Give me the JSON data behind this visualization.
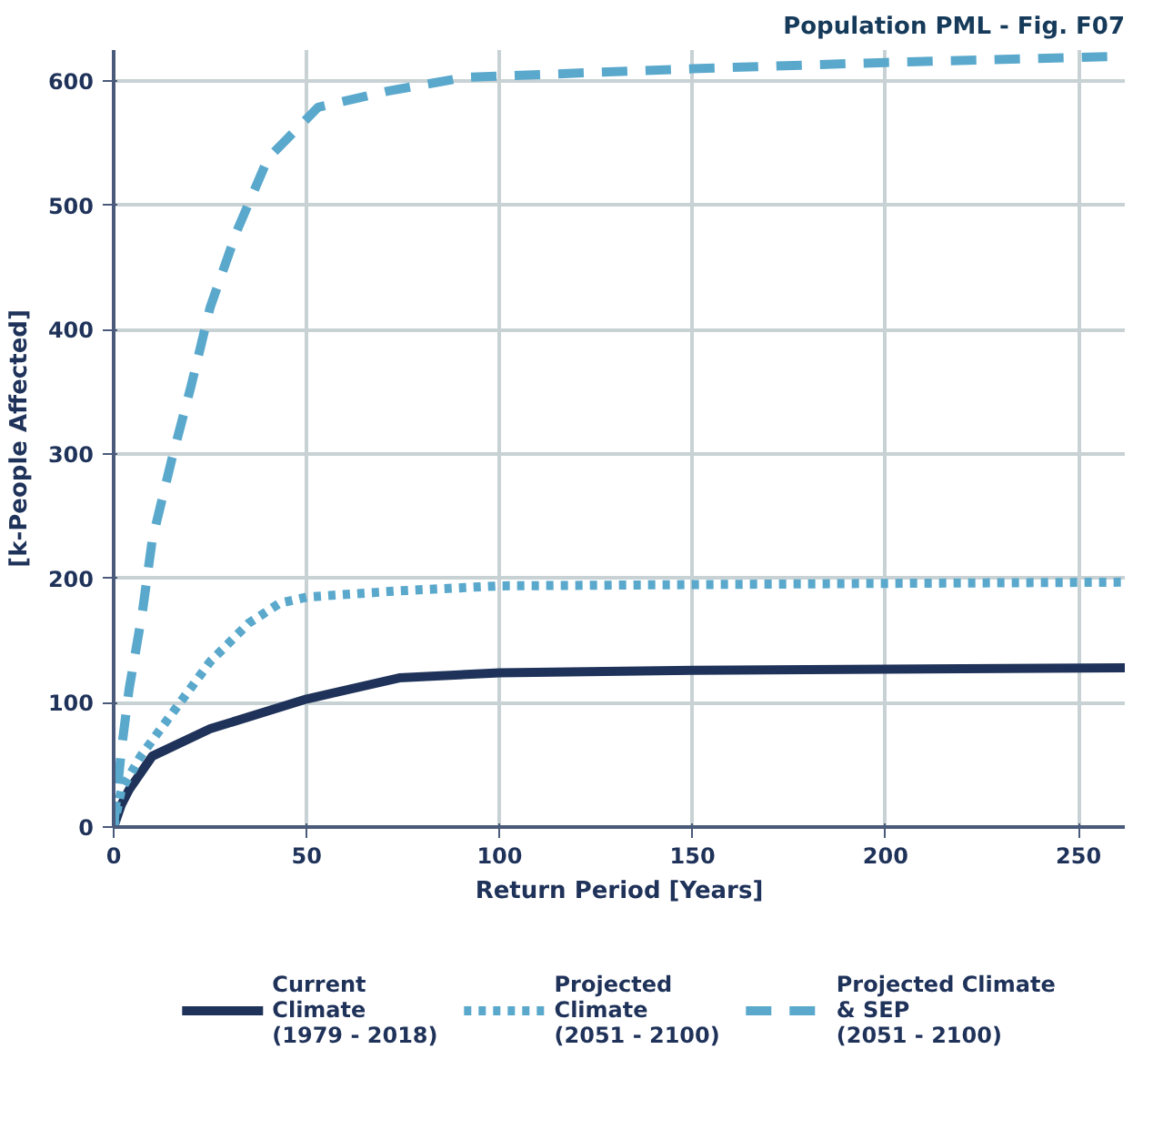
{
  "chart_data": {
    "type": "line",
    "title": "Population PML - Fig. F07",
    "xlabel": "Return Period [Years]",
    "ylabel": "[k-People Affected]",
    "xlim": [
      0,
      262
    ],
    "ylim": [
      0,
      625
    ],
    "xticks": [
      0,
      50,
      100,
      150,
      200,
      250
    ],
    "yticks": [
      0,
      100,
      200,
      300,
      400,
      500,
      600
    ],
    "grid": true,
    "legend": "bottom",
    "series": [
      {
        "name": "Current\nClimate\n(1979 - 2018)",
        "color": "#1f3259",
        "line_style": "solid",
        "x": [
          0,
          2,
          4,
          10,
          25,
          50,
          74,
          100,
          150,
          200,
          262
        ],
        "values": [
          0,
          18,
          30,
          57,
          79,
          103,
          120,
          124,
          126,
          127,
          128
        ]
      },
      {
        "name": "Projected\nClimate\n(2051 - 2100)",
        "color": "#5aa8cc",
        "line_style": "dotted",
        "x": [
          0,
          2,
          7,
          16,
          25,
          35,
          43,
          50,
          74,
          100,
          150,
          200,
          262
        ],
        "values": [
          0,
          30,
          57,
          95,
          133,
          164,
          180,
          185,
          190,
          194,
          195,
          196,
          197
        ]
      },
      {
        "name": "Projected Climate\n& SEP\n(2051 - 2100)",
        "color": "#5aa8cc",
        "line_style": "dashed",
        "x": [
          0,
          2,
          4,
          7.4,
          10,
          15,
          20,
          25,
          32,
          40,
          53,
          71,
          91,
          150,
          200,
          262
        ],
        "values": [
          0,
          62,
          111,
          172,
          231,
          295,
          354,
          418,
          480,
          538,
          579,
          592,
          603,
          610,
          615,
          620
        ]
      }
    ]
  }
}
